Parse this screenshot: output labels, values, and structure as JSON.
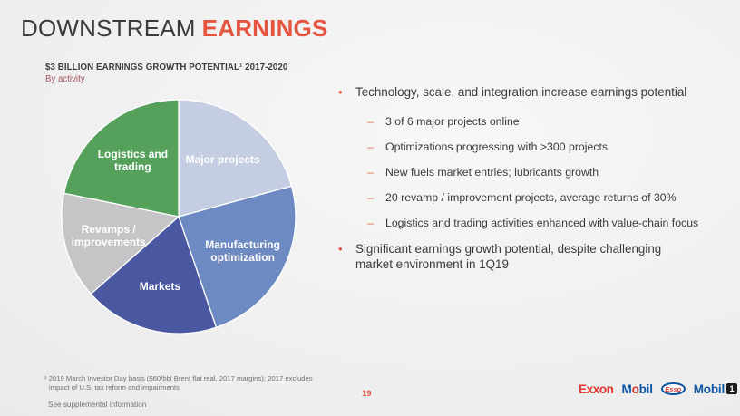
{
  "slide": {
    "title_prefix": "DOWNSTREAM",
    "title_emphasis": "EARNINGS",
    "page_number": "19",
    "footnote_line1": "¹ 2019 March Investor Day basis ($60/bbl Brent flat real, 2017 margins); 2017 excludes",
    "footnote_line2": "impact of U.S. tax reform and impairments",
    "supplemental": "See supplemental information"
  },
  "chart": {
    "title": "$3 BILLION EARNINGS GROWTH POTENTIAL¹ 2017-2020",
    "subtitle": "By activity"
  },
  "chart_data": {
    "type": "pie",
    "title": "$3 BILLION EARNINGS GROWTH POTENTIAL 2017-2020",
    "subtitle": "By activity",
    "unit": "% of total (estimated from slice angles, no values labeled)",
    "start_angle_deg": 0,
    "direction": "clockwise",
    "legend_position": "labels inside slices",
    "label_color": "#ffffff",
    "segments": [
      {
        "label": "Major projects",
        "value": 20.8,
        "color": "#c4cde1"
      },
      {
        "label": "Manufacturing optimization",
        "value": 24.0,
        "color": "#6e8ac2"
      },
      {
        "label": "Markets",
        "value": 18.7,
        "color": "#4a58a2"
      },
      {
        "label": "Revamps / improvements",
        "value": 14.7,
        "color": "#c5c5c7"
      },
      {
        "label": "Logistics and trading",
        "value": 21.8,
        "color": "#55a15c"
      }
    ]
  },
  "content": {
    "bullet_color": "#e4543e",
    "bullets": [
      {
        "text": "Technology, scale, and integration increase earnings potential",
        "sub": [
          "3 of 6 major projects online",
          "Optimizations progressing with >300 projects",
          "New fuels market entries; lubricants growth",
          "20 revamp / improvement projects, average returns of 30%",
          "Logistics and trading activities enhanced with value-chain focus"
        ]
      },
      {
        "text": "Significant earnings growth potential, despite challenging market environment in 1Q19",
        "sub": []
      }
    ]
  },
  "logos": {
    "exxon": "Exxon",
    "mobil_m": "M",
    "mobil_o": "o",
    "mobil_bil": "bil",
    "esso": "Esso",
    "mobil1_text": "Mobil",
    "mobil1_badge": "1"
  }
}
